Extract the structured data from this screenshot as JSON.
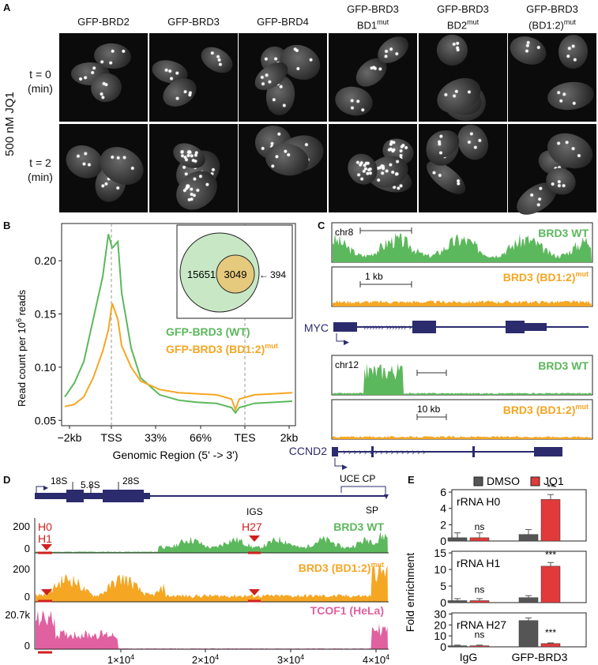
{
  "panel_a": {
    "label": "A",
    "treatment": "500 nM JQ1",
    "columns": [
      {
        "line1": "GFP-BRD2",
        "line2": "",
        "sup": ""
      },
      {
        "line1": "GFP-BRD3",
        "line2": "",
        "sup": ""
      },
      {
        "line1": "GFP-BRD4",
        "line2": "",
        "sup": ""
      },
      {
        "line1": "GFP-BRD3",
        "line2": "BD1",
        "sup": "mut"
      },
      {
        "line1": "GFP-BRD3",
        "line2": "BD2",
        "sup": "mut"
      },
      {
        "line1": "GFP-BRD3",
        "line2": "(BD1:2)",
        "sup": "mut"
      }
    ],
    "rows": [
      {
        "line1": "t = 0",
        "line2": "(min)"
      },
      {
        "line1": "t = 2",
        "line2": "(min)"
      }
    ]
  },
  "panel_b": {
    "label": "B",
    "ylabel_main": "Read count per 10",
    "ylabel_sup": "6",
    "ylabel_tail": " reads",
    "xlabel": "Genomic Region (5' -> 3')",
    "venn": {
      "only_wt": "15651",
      "overlap": "3049",
      "only_mut": "394"
    },
    "legend_wt": "GFP-BRD3 (WT)",
    "legend_mut_main": "GFP-BRD3 (BD1:2)",
    "legend_mut_sup": "mut"
  },
  "panel_c": {
    "label": "C",
    "myc_chr": "chr8",
    "myc_scale": "1 kb",
    "myc_gene": "MYC",
    "ccnd_chr": "chr12",
    "ccnd_scale": "10 kb",
    "ccnd_gene": "CCND2",
    "track_wt": "BRD3 WT",
    "track_mut_main": "BRD3 (BD1:2)",
    "track_mut_sup": "mut"
  },
  "panel_d": {
    "label": "D",
    "gene_labels": {
      "s18": "18S",
      "s58": "5.8S",
      "s28": "28S",
      "igs": "IGS",
      "uce_cp": "UCE CP",
      "sp": "SP"
    },
    "primers": {
      "h0": "H0",
      "h1": "H1",
      "h27": "H27"
    },
    "track_wt": "BRD3 WT",
    "track_mut_main": "BRD3 (BD1:2)",
    "track_mut_sup": "mut",
    "track_tcof": "TCOF1 (HeLa)",
    "y_max_1": "200",
    "y_max_2": "200",
    "y_max_3": "20.7k",
    "y_zero": "0"
  },
  "panel_e": {
    "label": "E",
    "legend_dmso": "DMSO",
    "legend_jq1": "JQ1",
    "ylabel": "Fold enrichment",
    "groups": [
      "IgG",
      "GFP-BRD3"
    ]
  },
  "chart_data": [
    {
      "type": "line",
      "title": "",
      "xlabel": "Genomic Region (5' -> 3')",
      "ylabel": "Read count per 10^6 reads",
      "x_ticks": [
        "-2kb",
        "TSS",
        "33%",
        "66%",
        "TES",
        "2kb"
      ],
      "x": [
        0,
        0.5,
        1,
        1.5,
        2,
        2.3,
        2.5,
        2.8,
        3,
        3.5,
        4,
        5,
        6,
        7,
        8,
        8.8,
        9,
        9.2,
        10,
        11,
        12
      ],
      "ylim": [
        0.045,
        0.235
      ],
      "y_ticks": [
        0.05,
        0.1,
        0.15,
        0.2
      ],
      "series": [
        {
          "name": "GFP-BRD3 (WT)",
          "color": "#5cb85c",
          "values": [
            0.072,
            0.085,
            0.105,
            0.145,
            0.185,
            0.225,
            0.212,
            0.218,
            0.17,
            0.118,
            0.09,
            0.074,
            0.069,
            0.067,
            0.066,
            0.062,
            0.057,
            0.062,
            0.066,
            0.067,
            0.068
          ]
        },
        {
          "name": "GFP-BRD3 (BD1:2)mut",
          "color": "#f5a623",
          "values": [
            0.063,
            0.065,
            0.072,
            0.09,
            0.115,
            0.135,
            0.16,
            0.145,
            0.12,
            0.1,
            0.087,
            0.079,
            0.076,
            0.075,
            0.074,
            0.07,
            0.06,
            0.07,
            0.074,
            0.075,
            0.076
          ]
        }
      ]
    },
    {
      "type": "bar",
      "title": "rRNA H0",
      "categories": [
        "IgG",
        "GFP-BRD3"
      ],
      "ylim": [
        0,
        6.3
      ],
      "y_ticks": [
        0,
        2,
        4,
        6
      ],
      "series": [
        {
          "name": "DMSO",
          "values": [
            0.4,
            0.8
          ]
        },
        {
          "name": "JQ1",
          "values": [
            0.4,
            5.1
          ]
        }
      ],
      "significance": [
        "ns",
        "**"
      ]
    },
    {
      "type": "bar",
      "title": "rRNA H1",
      "categories": [
        "IgG",
        "GFP-BRD3"
      ],
      "ylim": [
        0,
        15.5
      ],
      "y_ticks": [
        0,
        5,
        10,
        15
      ],
      "series": [
        {
          "name": "DMSO",
          "values": [
            0.6,
            1.5
          ]
        },
        {
          "name": "JQ1",
          "values": [
            0.6,
            11
          ]
        }
      ],
      "significance": [
        "ns",
        "***"
      ]
    },
    {
      "type": "bar",
      "title": "rRNA H27",
      "categories": [
        "IgG",
        "GFP-BRD3"
      ],
      "ylim": [
        0,
        31
      ],
      "y_ticks": [
        0,
        10,
        20,
        30
      ],
      "series": [
        {
          "name": "DMSO",
          "values": [
            1,
            24
          ]
        },
        {
          "name": "JQ1",
          "values": [
            1,
            3
          ]
        }
      ],
      "significance": [
        "ns",
        "***"
      ]
    }
  ]
}
